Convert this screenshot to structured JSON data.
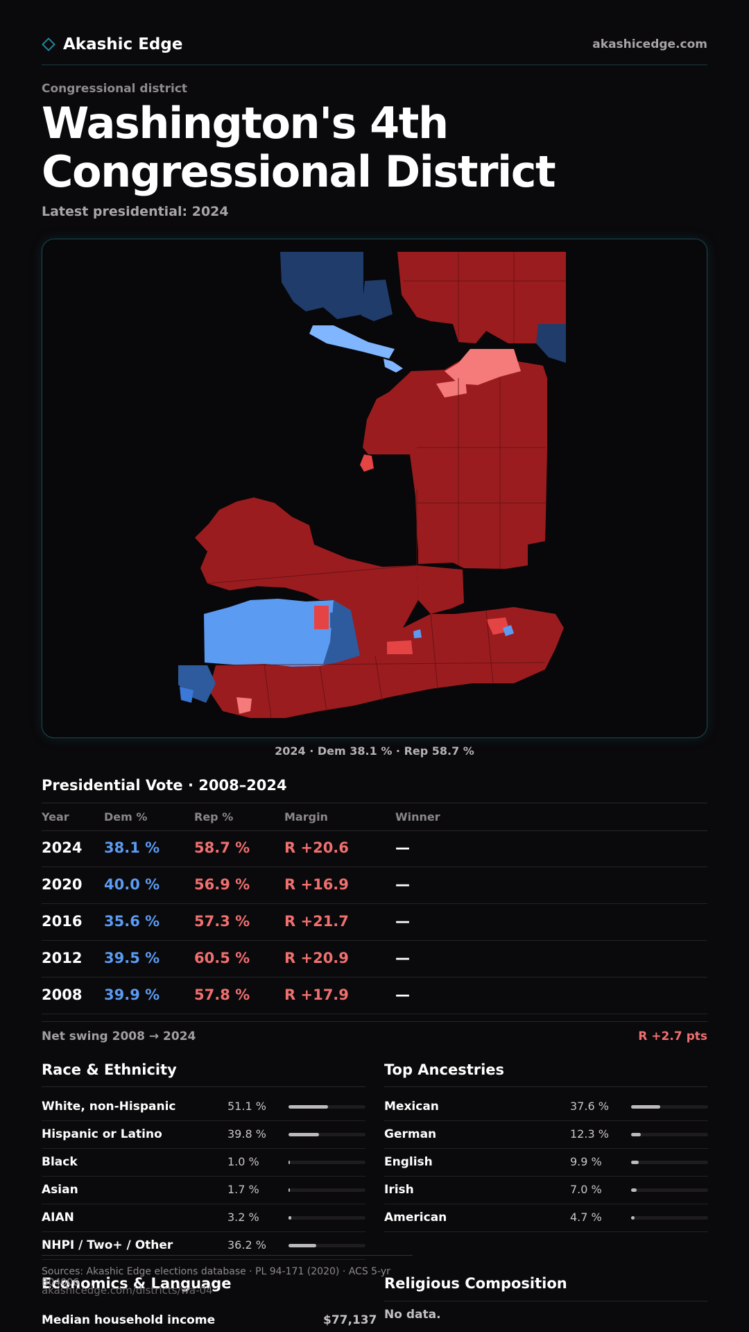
{
  "header": {
    "brand": "Akashic Edge",
    "site_url": "akashicedge.com"
  },
  "page": {
    "kicker": "Congressional district",
    "title": "Washington's  4th Congressional District",
    "latest": "Latest presidential: 2024"
  },
  "map": {
    "caption": "2024 · Dem 38.1 % · Rep 58.7 %",
    "colors": {
      "strong_rep": "#9b1c1f",
      "lean_rep": "#e54444",
      "tilt_rep": "#f57a7a",
      "strong_dem": "#1f3c6b",
      "lean_dem": "#2d5b9e",
      "tilt_dem": "#5b9bf2",
      "light_dem": "#7fb6ff"
    }
  },
  "presidential": {
    "heading": "Presidential Vote · 2008–2024",
    "columns": [
      "Year",
      "Dem %",
      "Rep %",
      "Margin",
      "Winner"
    ],
    "rows": [
      {
        "year": "2024",
        "dem": "38.1 %",
        "rep": "58.7 %",
        "margin": "R +20.6",
        "winner": "—"
      },
      {
        "year": "2020",
        "dem": "40.0 %",
        "rep": "56.9 %",
        "margin": "R +16.9",
        "winner": "—"
      },
      {
        "year": "2016",
        "dem": "35.6 %",
        "rep": "57.3 %",
        "margin": "R +21.7",
        "winner": "—"
      },
      {
        "year": "2012",
        "dem": "39.5 %",
        "rep": "60.5 %",
        "margin": "R +20.9",
        "winner": "—"
      },
      {
        "year": "2008",
        "dem": "39.9 %",
        "rep": "57.8 %",
        "margin": "R +17.9",
        "winner": "—"
      }
    ],
    "swing_label": "Net swing 2008 → 2024",
    "swing_value": "R +2.7 pts"
  },
  "race": {
    "heading": "Race & Ethnicity",
    "items": [
      {
        "name": "White, non-Hispanic",
        "value": "51.1 %",
        "fraction": 0.511
      },
      {
        "name": "Hispanic or Latino",
        "value": "39.8 %",
        "fraction": 0.398
      },
      {
        "name": "Black",
        "value": "1.0 %",
        "fraction": 0.01
      },
      {
        "name": "Asian",
        "value": "1.7 %",
        "fraction": 0.017
      },
      {
        "name": "AIAN",
        "value": "3.2 %",
        "fraction": 0.032
      },
      {
        "name": "NHPI / Two+ / Other",
        "value": "36.2 %",
        "fraction": 0.362
      }
    ]
  },
  "ancestry": {
    "heading": "Top Ancestries",
    "items": [
      {
        "name": "Mexican",
        "value": "37.6 %",
        "fraction": 0.376
      },
      {
        "name": "German",
        "value": "12.3 %",
        "fraction": 0.123
      },
      {
        "name": "English",
        "value": "9.9 %",
        "fraction": 0.099
      },
      {
        "name": "Irish",
        "value": "7.0 %",
        "fraction": 0.07
      },
      {
        "name": "American",
        "value": "4.7 %",
        "fraction": 0.047
      }
    ]
  },
  "footer": {
    "sources": "Sources: Akashic Edge elections database · PL 94-171 (2020) · ACS 5-yr B04006",
    "url": "akashicedge.com/districts/wa-04"
  },
  "economics": {
    "heading": "Economics & Language",
    "median_income_label": "Median household income",
    "median_income_value": "$77,137"
  },
  "religion": {
    "heading": "Religious Composition",
    "empty": "No data."
  }
}
